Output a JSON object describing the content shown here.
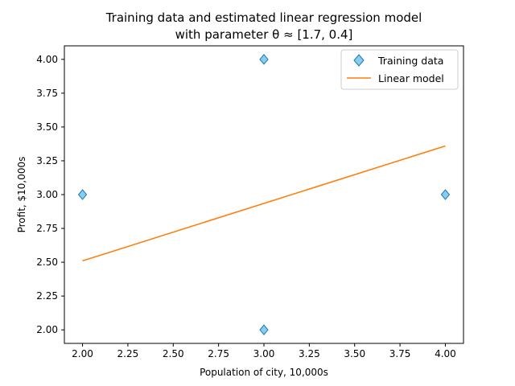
{
  "chart_data": {
    "type": "scatter",
    "title_line1": "Training data and estimated linear regression model",
    "title_line2": "with parameter θ ≈ [1.7, 0.4]",
    "xlabel": "Population of city, 10,000s",
    "ylabel": "Profit, $10,000s",
    "xlim": [
      1.9,
      4.1
    ],
    "ylim": [
      1.9,
      4.1
    ],
    "xticks": [
      2.0,
      2.25,
      2.5,
      2.75,
      3.0,
      3.25,
      3.5,
      3.75,
      4.0
    ],
    "xtick_labels": [
      "2.00",
      "2.25",
      "2.50",
      "2.75",
      "3.00",
      "3.25",
      "3.50",
      "3.75",
      "4.00"
    ],
    "yticks": [
      2.0,
      2.25,
      2.5,
      2.75,
      3.0,
      3.25,
      3.5,
      3.75,
      4.0
    ],
    "ytick_labels": [
      "2.00",
      "2.25",
      "2.50",
      "2.75",
      "3.00",
      "3.25",
      "3.50",
      "3.75",
      "4.00"
    ],
    "grid": false,
    "legend_position": "top-right",
    "series": [
      {
        "name": "Training data",
        "kind": "scatter",
        "marker": "diamond",
        "color": "#87ceeb",
        "edge_color": "#1f77b4",
        "x": [
          2,
          3,
          3,
          4
        ],
        "y": [
          3,
          4,
          2,
          3
        ]
      },
      {
        "name": "Linear model",
        "kind": "line",
        "color": "#ff7f0e",
        "x": [
          2,
          4
        ],
        "y": [
          2.51,
          3.36
        ]
      }
    ]
  }
}
